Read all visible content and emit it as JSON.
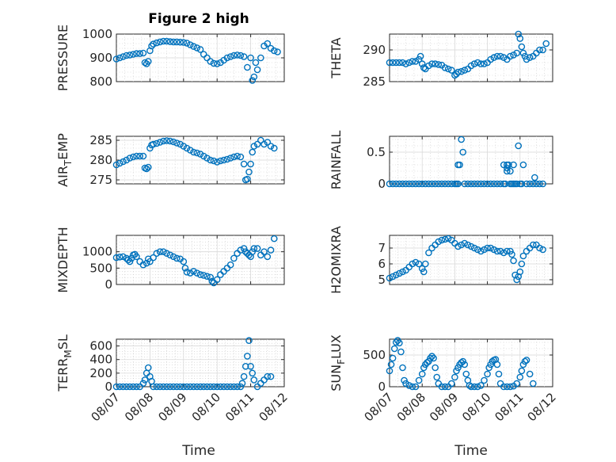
{
  "figure": {
    "title": "Figure 2 high",
    "marker_color": "#0072BD"
  },
  "chart_data": [
    {
      "id": "pressure",
      "type": "scatter",
      "ylabel": "PRESSURE",
      "ylabel_sub": "",
      "xlim": [
        "08/07",
        "08/12"
      ],
      "ylim": [
        800,
        1000
      ],
      "yticks": [
        800,
        900,
        1000
      ],
      "ytick_labels": [
        "800",
        "900",
        "1000"
      ],
      "x": [
        0.0,
        0.1,
        0.2,
        0.3,
        0.4,
        0.5,
        0.6,
        0.7,
        0.8,
        0.85,
        0.9,
        0.95,
        1.0,
        1.05,
        1.1,
        1.2,
        1.3,
        1.4,
        1.5,
        1.6,
        1.7,
        1.8,
        1.9,
        2.0,
        2.1,
        2.2,
        2.3,
        2.4,
        2.5,
        2.6,
        2.7,
        2.8,
        2.9,
        3.0,
        3.1,
        3.2,
        3.3,
        3.4,
        3.5,
        3.6,
        3.7,
        3.8,
        3.9,
        4.0,
        4.05,
        4.1,
        4.15,
        4.2,
        4.3,
        4.4,
        4.5,
        4.6,
        4.7,
        4.8
      ],
      "y": [
        895,
        900,
        905,
        910,
        912,
        915,
        918,
        918,
        920,
        880,
        875,
        885,
        930,
        950,
        958,
        963,
        967,
        970,
        970,
        968,
        967,
        967,
        966,
        965,
        962,
        955,
        948,
        942,
        935,
        915,
        900,
        885,
        877,
        875,
        880,
        890,
        900,
        905,
        910,
        912,
        910,
        905,
        860,
        900,
        805,
        820,
        880,
        850,
        900,
        950,
        960,
        940,
        930,
        925
      ]
    },
    {
      "id": "theta",
      "type": "scatter",
      "ylabel": "THETA",
      "ylabel_sub": "",
      "xlim": [
        "08/07",
        "08/12"
      ],
      "ylim": [
        285,
        292.5
      ],
      "yticks": [
        285,
        290
      ],
      "ytick_labels": [
        "285",
        "290"
      ],
      "x": [
        0.0,
        0.1,
        0.2,
        0.3,
        0.4,
        0.5,
        0.6,
        0.7,
        0.8,
        0.9,
        0.95,
        1.0,
        1.05,
        1.1,
        1.2,
        1.3,
        1.4,
        1.5,
        1.6,
        1.7,
        1.8,
        1.9,
        2.0,
        2.05,
        2.1,
        2.2,
        2.3,
        2.4,
        2.5,
        2.6,
        2.7,
        2.8,
        2.9,
        3.0,
        3.1,
        3.2,
        3.3,
        3.4,
        3.5,
        3.6,
        3.7,
        3.8,
        3.9,
        3.95,
        4.0,
        4.05,
        4.1,
        4.15,
        4.2,
        4.3,
        4.4,
        4.5,
        4.6,
        4.7,
        4.8
      ],
      "y": [
        288,
        288,
        288,
        288,
        288,
        287.8,
        288,
        288.2,
        288.2,
        288.5,
        289,
        287.8,
        287.2,
        287.0,
        287.5,
        287.8,
        287.8,
        287.7,
        287.6,
        287.2,
        287.0,
        286.8,
        286.0,
        286.2,
        286.5,
        286.6,
        286.8,
        287,
        287.5,
        287.8,
        288.0,
        287.8,
        287.8,
        288,
        288.5,
        288.8,
        289,
        289,
        288.8,
        288.5,
        289,
        289.2,
        289.5,
        292.5,
        291.8,
        290.5,
        289.5,
        289,
        288.5,
        288.8,
        289.0,
        289.5,
        290,
        290,
        291
      ]
    },
    {
      "id": "air_temp",
      "type": "scatter",
      "ylabel": "AIR",
      "ylabel_sub": "T",
      "ylabel_suffix": "EMP",
      "xlim": [
        "08/07",
        "08/12"
      ],
      "ylim": [
        274,
        286
      ],
      "yticks": [
        275,
        280,
        285
      ],
      "ytick_labels": [
        "275",
        "280",
        "285"
      ],
      "x": [
        0.0,
        0.1,
        0.2,
        0.3,
        0.4,
        0.5,
        0.6,
        0.7,
        0.8,
        0.85,
        0.9,
        0.95,
        1.0,
        1.05,
        1.1,
        1.2,
        1.3,
        1.4,
        1.5,
        1.6,
        1.7,
        1.8,
        1.9,
        2.0,
        2.1,
        2.2,
        2.3,
        2.4,
        2.5,
        2.6,
        2.7,
        2.8,
        2.9,
        3.0,
        3.1,
        3.2,
        3.3,
        3.4,
        3.5,
        3.6,
        3.7,
        3.8,
        3.85,
        3.9,
        3.95,
        4.0,
        4.05,
        4.1,
        4.2,
        4.3,
        4.4,
        4.5,
        4.6,
        4.7
      ],
      "y": [
        278.8,
        279.2,
        279.6,
        280,
        280.5,
        280.8,
        281,
        281,
        281,
        278,
        277.8,
        278.2,
        283,
        283.8,
        284,
        284.2,
        284.5,
        284.8,
        284.9,
        284.8,
        284.6,
        284.3,
        284,
        283.5,
        283,
        282.5,
        282,
        281.8,
        281.5,
        281,
        280.5,
        280,
        279.8,
        279.5,
        279.8,
        280,
        280.2,
        280.5,
        280.8,
        281,
        280.8,
        279,
        275,
        275.2,
        277,
        279,
        282,
        283.5,
        284,
        285,
        284,
        284.5,
        283.5,
        283
      ]
    },
    {
      "id": "rainfall",
      "type": "scatter",
      "ylabel": "RAINFALL",
      "ylabel_sub": "",
      "xlim": [
        "08/07",
        "08/12"
      ],
      "ylim": [
        0,
        0.75
      ],
      "yticks": [
        0,
        0.5
      ],
      "ytick_labels": [
        "0",
        "0.5"
      ],
      "x": [
        0.0,
        0.1,
        0.2,
        0.3,
        0.4,
        0.5,
        0.6,
        0.7,
        0.8,
        0.9,
        1.0,
        1.1,
        1.2,
        1.3,
        1.4,
        1.5,
        1.6,
        1.7,
        1.8,
        1.9,
        2.0,
        2.05,
        2.1,
        2.1,
        2.15,
        2.2,
        2.25,
        2.3,
        2.4,
        2.5,
        2.6,
        2.7,
        2.8,
        2.9,
        3.0,
        3.1,
        3.2,
        3.3,
        3.4,
        3.5,
        3.5,
        3.55,
        3.6,
        3.6,
        3.6,
        3.65,
        3.7,
        3.7,
        3.75,
        3.8,
        3.8,
        3.85,
        3.9,
        3.95,
        4.0,
        4.05,
        4.1,
        4.2,
        4.3,
        4.4,
        4.45,
        4.5,
        4.6,
        4.7
      ],
      "y": [
        0,
        0,
        0,
        0,
        0,
        0,
        0,
        0,
        0,
        0,
        0,
        0,
        0,
        0,
        0,
        0,
        0,
        0,
        0,
        0,
        0,
        0,
        0.3,
        0,
        0.3,
        0.7,
        0.5,
        0,
        0,
        0,
        0,
        0,
        0,
        0,
        0,
        0,
        0,
        0,
        0,
        0,
        0.3,
        0,
        0.3,
        0.25,
        0.2,
        0.3,
        0,
        0.2,
        0,
        0.3,
        0,
        0,
        0,
        0.6,
        0,
        0,
        0.3,
        0,
        0,
        0,
        0.1,
        0,
        0,
        0
      ]
    },
    {
      "id": "mixdepth",
      "type": "scatter",
      "ylabel": "MIXDEPTH",
      "ylabel_sub": "",
      "xlim": [
        "08/07",
        "08/12"
      ],
      "ylim": [
        0,
        1500
      ],
      "yticks": [
        0,
        500,
        1000
      ],
      "ytick_labels": [
        "0",
        "500",
        "1000"
      ],
      "x": [
        0.0,
        0.1,
        0.2,
        0.3,
        0.35,
        0.4,
        0.45,
        0.5,
        0.55,
        0.6,
        0.7,
        0.8,
        0.9,
        0.95,
        1.0,
        1.1,
        1.2,
        1.3,
        1.4,
        1.5,
        1.6,
        1.7,
        1.8,
        1.9,
        2.0,
        2.05,
        2.1,
        2.2,
        2.3,
        2.4,
        2.5,
        2.6,
        2.7,
        2.8,
        2.85,
        2.9,
        3.0,
        3.1,
        3.2,
        3.3,
        3.4,
        3.5,
        3.6,
        3.7,
        3.8,
        3.85,
        3.9,
        3.95,
        4.0,
        4.05,
        4.1,
        4.2,
        4.3,
        4.4,
        4.5,
        4.6,
        4.7
      ],
      "y": [
        820,
        840,
        850,
        800,
        750,
        700,
        800,
        900,
        920,
        850,
        700,
        600,
        650,
        780,
        700,
        820,
        950,
        1000,
        1000,
        950,
        900,
        850,
        800,
        780,
        700,
        500,
        380,
        350,
        400,
        350,
        300,
        280,
        250,
        220,
        100,
        50,
        150,
        300,
        400,
        500,
        600,
        800,
        950,
        1050,
        1100,
        1000,
        950,
        900,
        850,
        1000,
        1100,
        1100,
        900,
        1000,
        850,
        1050,
        1400
      ]
    },
    {
      "id": "h2omixra",
      "type": "scatter",
      "ylabel": "H2OMIXRA",
      "ylabel_sub": "",
      "xlim": [
        "08/07",
        "08/12"
      ],
      "ylim": [
        4.7,
        7.8
      ],
      "yticks": [
        5,
        6,
        7
      ],
      "ytick_labels": [
        "5",
        "6",
        "7"
      ],
      "x": [
        0.0,
        0.1,
        0.2,
        0.3,
        0.4,
        0.5,
        0.6,
        0.7,
        0.8,
        0.9,
        1.0,
        1.05,
        1.1,
        1.2,
        1.3,
        1.4,
        1.5,
        1.6,
        1.7,
        1.8,
        1.9,
        2.0,
        2.1,
        2.2,
        2.3,
        2.4,
        2.5,
        2.6,
        2.7,
        2.8,
        2.9,
        3.0,
        3.1,
        3.2,
        3.3,
        3.4,
        3.5,
        3.6,
        3.7,
        3.75,
        3.8,
        3.85,
        3.9,
        3.95,
        4.0,
        4.05,
        4.1,
        4.2,
        4.3,
        4.4,
        4.5,
        4.6,
        4.7
      ],
      "y": [
        5.1,
        5.2,
        5.3,
        5.4,
        5.5,
        5.6,
        5.8,
        6.0,
        6.1,
        6.0,
        5.7,
        5.5,
        6.0,
        6.7,
        7.0,
        7.2,
        7.4,
        7.5,
        7.55,
        7.6,
        7.5,
        7.3,
        7.1,
        7.2,
        7.3,
        7.2,
        7.1,
        7.0,
        6.9,
        6.8,
        6.9,
        7.0,
        7.0,
        6.9,
        6.8,
        6.8,
        6.7,
        6.8,
        6.8,
        6.6,
        6.2,
        5.3,
        5.0,
        5.2,
        5.5,
        6.0,
        6.5,
        6.8,
        7.0,
        7.2,
        7.2,
        7.0,
        6.9
      ]
    },
    {
      "id": "terr_msl",
      "type": "scatter",
      "ylabel": "TERR",
      "ylabel_sub": "M",
      "ylabel_suffix": "SL",
      "xlim": [
        "08/07",
        "08/12"
      ],
      "ylim": [
        0,
        700
      ],
      "yticks": [
        0,
        200,
        400,
        600
      ],
      "ytick_labels": [
        "0",
        "200",
        "400",
        "600"
      ],
      "x": [
        0.0,
        0.1,
        0.2,
        0.3,
        0.4,
        0.5,
        0.6,
        0.7,
        0.8,
        0.85,
        0.9,
        0.95,
        1.0,
        1.05,
        1.1,
        1.2,
        1.3,
        1.4,
        1.5,
        1.6,
        1.7,
        1.8,
        1.9,
        2.0,
        2.1,
        2.2,
        2.3,
        2.4,
        2.5,
        2.6,
        2.7,
        2.8,
        2.9,
        3.0,
        3.1,
        3.2,
        3.3,
        3.4,
        3.5,
        3.6,
        3.7,
        3.75,
        3.8,
        3.85,
        3.9,
        3.95,
        4.0,
        4.05,
        4.1,
        4.2,
        4.3,
        4.4,
        4.5,
        4.6
      ],
      "y": [
        0,
        0,
        0,
        0,
        0,
        0,
        0,
        0,
        50,
        100,
        200,
        280,
        150,
        80,
        0,
        0,
        0,
        0,
        0,
        0,
        0,
        0,
        0,
        0,
        0,
        0,
        0,
        0,
        0,
        0,
        0,
        0,
        0,
        0,
        0,
        0,
        0,
        0,
        0,
        0,
        0,
        50,
        150,
        300,
        450,
        680,
        300,
        200,
        100,
        0,
        50,
        100,
        150,
        150
      ]
    },
    {
      "id": "sun_flux",
      "type": "scatter",
      "ylabel": "SUN",
      "ylabel_sub": "F",
      "ylabel_suffix": "LUX",
      "xlim": [
        "08/07",
        "08/12"
      ],
      "ylim": [
        0,
        750
      ],
      "yticks": [
        0,
        500
      ],
      "ytick_labels": [
        "0",
        "500"
      ],
      "x": [
        0.0,
        0.05,
        0.1,
        0.15,
        0.2,
        0.25,
        0.3,
        0.35,
        0.4,
        0.45,
        0.5,
        0.6,
        0.7,
        0.8,
        0.9,
        1.0,
        1.05,
        1.1,
        1.15,
        1.2,
        1.25,
        1.3,
        1.35,
        1.4,
        1.45,
        1.5,
        1.6,
        1.7,
        1.8,
        1.9,
        2.0,
        2.05,
        2.1,
        2.15,
        2.2,
        2.25,
        2.3,
        2.35,
        2.4,
        2.45,
        2.5,
        2.6,
        2.7,
        2.8,
        2.9,
        3.0,
        3.05,
        3.1,
        3.15,
        3.2,
        3.25,
        3.3,
        3.35,
        3.4,
        3.5,
        3.6,
        3.7,
        3.8,
        3.9,
        4.0,
        4.05,
        4.1,
        4.15,
        4.2,
        4.3,
        4.4
      ],
      "y": [
        250,
        350,
        450,
        600,
        700,
        730,
        690,
        550,
        300,
        100,
        50,
        20,
        0,
        0,
        100,
        200,
        300,
        350,
        380,
        400,
        450,
        480,
        450,
        300,
        150,
        50,
        0,
        0,
        0,
        50,
        150,
        250,
        300,
        350,
        380,
        400,
        350,
        200,
        100,
        20,
        0,
        0,
        0,
        20,
        100,
        200,
        300,
        350,
        400,
        420,
        430,
        350,
        200,
        50,
        0,
        0,
        0,
        10,
        50,
        150,
        250,
        350,
        400,
        420,
        200,
        50
      ]
    }
  ],
  "x_axis": {
    "tick_labels": [
      "08/07",
      "08/08",
      "08/09",
      "08/10",
      "08/11",
      "08/12"
    ],
    "label": "Time"
  }
}
